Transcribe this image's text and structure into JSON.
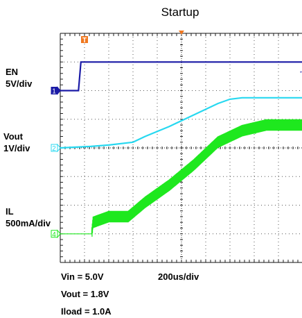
{
  "chart_data": {
    "type": "line",
    "title": "Startup",
    "x_unit_label": "200us/div",
    "x_divisions": 10,
    "y_divisions": 8,
    "grid": true,
    "channels": [
      {
        "id": "1",
        "name": "EN",
        "scale": "5V/div",
        "color": "#1a1aa6",
        "ground_div": 6.0,
        "points_div_volts": [
          [
            0,
            0
          ],
          [
            0.75,
            0
          ],
          [
            0.85,
            5
          ],
          [
            10,
            5
          ]
        ]
      },
      {
        "id": "2",
        "name": "Vout",
        "scale": "1V/div",
        "color": "#27d8f0",
        "ground_div": 4.0,
        "points_div_volts": [
          [
            0,
            0
          ],
          [
            1.25,
            0.05
          ],
          [
            2.0,
            0.1
          ],
          [
            3.0,
            0.2
          ],
          [
            3.5,
            0.4
          ],
          [
            4.5,
            0.75
          ],
          [
            5.5,
            1.15
          ],
          [
            6.5,
            1.55
          ],
          [
            7.0,
            1.7
          ],
          [
            7.5,
            1.75
          ],
          [
            10,
            1.75
          ]
        ]
      },
      {
        "id": "4",
        "name": "IL",
        "scale": "500mA/div",
        "color": "#1ee81e",
        "ground_div": 1.0,
        "points_div_amps": [
          [
            0,
            0
          ],
          [
            1.3,
            0
          ],
          [
            1.35,
            0.2
          ],
          [
            2.0,
            0.3
          ],
          [
            2.8,
            0.3
          ],
          [
            3.5,
            0.55
          ],
          [
            4.5,
            0.85
          ],
          [
            5.5,
            1.2
          ],
          [
            6.5,
            1.6
          ],
          [
            7.5,
            1.8
          ],
          [
            8.5,
            1.9
          ],
          [
            10,
            1.9
          ]
        ],
        "ripple_amps": 0.2
      }
    ]
  },
  "notes": {
    "vin": "Vin = 5.0V",
    "vout": "Vout = 1.8V",
    "iload": "Iload = 1.0A"
  },
  "trigger_marker": "T"
}
